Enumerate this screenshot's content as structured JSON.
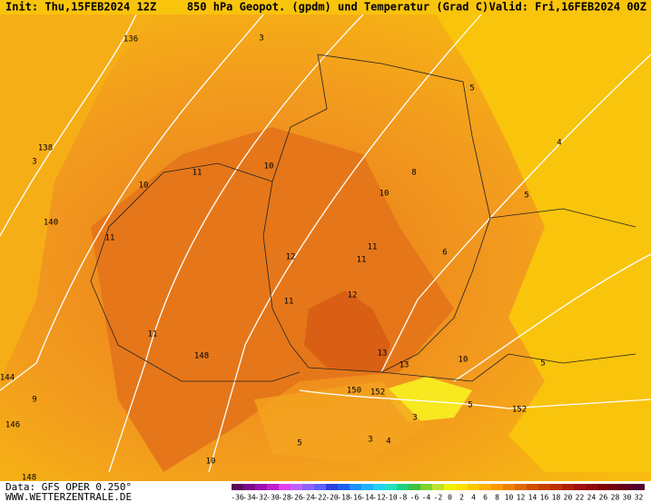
{
  "header": {
    "init": "Init: Thu,15FEB2024 12Z",
    "title": "850 hPa Geopot. (gpdm) und Temperatur (Grad C)",
    "valid": "Valid: Fri,16FEB2024 00Z"
  },
  "footer": {
    "data": "Data: GFS OPER 0.250°",
    "site": "WWW.WETTERZENTRALE.DE"
  },
  "colorbar": {
    "labels": [
      -36,
      -34,
      -32,
      -30,
      -28,
      -26,
      -24,
      -22,
      -20,
      -18,
      -16,
      -14,
      -12,
      -10,
      -8,
      -6,
      -4,
      -2,
      0,
      2,
      4,
      6,
      8,
      10,
      12,
      14,
      16,
      18,
      20,
      22,
      24,
      26,
      28,
      30,
      32
    ],
    "colors": [
      "#5a0a5a",
      "#7a0a8a",
      "#9a10b0",
      "#c020d0",
      "#e040f0",
      "#c060ff",
      "#9060ff",
      "#6060ff",
      "#3040e0",
      "#2060f0",
      "#2090ff",
      "#20b0ff",
      "#20d0f0",
      "#20e0c0",
      "#20d080",
      "#40c040",
      "#80d030",
      "#c0e030",
      "#f0f000",
      "#ffe000",
      "#ffc800",
      "#ffb000",
      "#ff9800",
      "#f08000",
      "#e06800",
      "#d05000",
      "#c84000",
      "#c03000",
      "#b02000",
      "#a01010",
      "#900808",
      "#800000",
      "#700010",
      "#600020",
      "#500030"
    ]
  },
  "map": {
    "labels": [
      "136",
      "138",
      "140",
      "144",
      "146",
      "148",
      "148",
      "150",
      "152",
      "152",
      "3",
      "3",
      "4",
      "5",
      "5",
      "5",
      "5",
      "6",
      "8",
      "9",
      "10",
      "10",
      "10",
      "10",
      "10",
      "11",
      "11",
      "11",
      "11",
      "11",
      "12",
      "12",
      "13",
      "13",
      "11",
      "3",
      "3",
      "4",
      "5"
    ]
  }
}
